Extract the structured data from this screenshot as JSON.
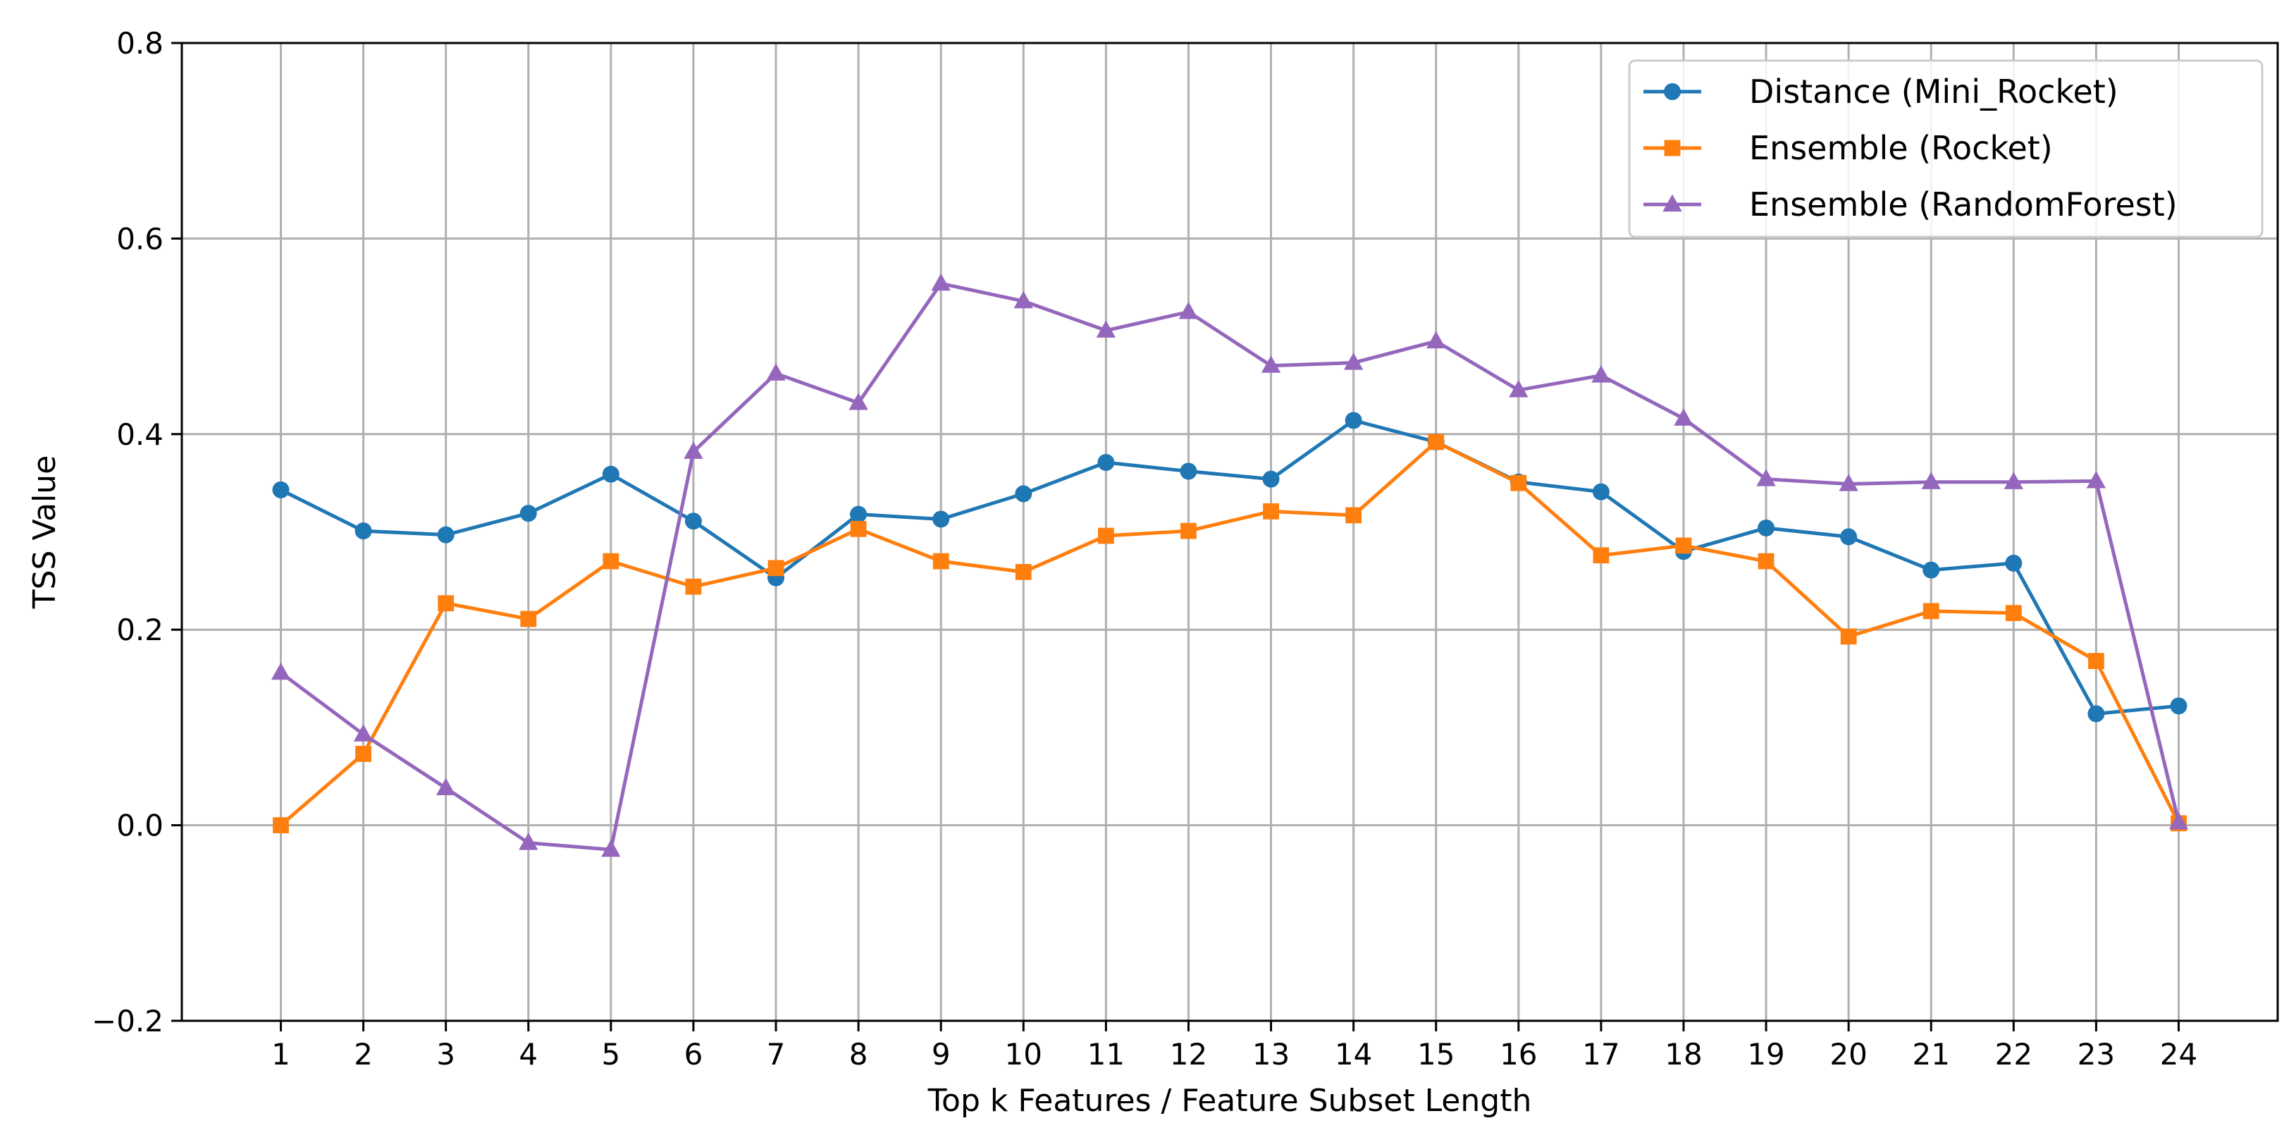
{
  "chart_data": {
    "type": "line",
    "title": "",
    "xlabel": "Top k Features / Feature Subset Length",
    "ylabel": "TSS Value",
    "x": [
      1,
      2,
      3,
      4,
      5,
      6,
      7,
      8,
      9,
      10,
      11,
      12,
      13,
      14,
      15,
      16,
      17,
      18,
      19,
      20,
      21,
      22,
      23,
      24
    ],
    "xlim": [
      -0.2,
      25.2
    ],
    "ylim": [
      -0.2,
      0.8
    ],
    "yticks": [
      -0.2,
      0.0,
      0.2,
      0.4,
      0.6,
      0.8
    ],
    "ytick_labels": [
      "−0.2",
      "0.0",
      "0.2",
      "0.4",
      "0.6",
      "0.8"
    ],
    "grid": true,
    "legend_position": "top-right",
    "series": [
      {
        "name": "Distance (Mini_Rocket)",
        "color": "#1f77b4",
        "marker": "circle",
        "values": [
          0.343,
          0.301,
          0.297,
          0.319,
          0.359,
          0.311,
          0.253,
          0.318,
          0.313,
          0.339,
          0.371,
          0.362,
          0.354,
          0.414,
          0.392,
          0.351,
          0.341,
          0.28,
          0.304,
          0.295,
          0.261,
          0.268,
          0.114,
          0.122
        ]
      },
      {
        "name": "Ensemble (Rocket)",
        "color": "#ff7f0e",
        "marker": "square",
        "values": [
          0.0,
          0.073,
          0.227,
          0.211,
          0.27,
          0.244,
          0.263,
          0.303,
          0.27,
          0.259,
          0.296,
          0.301,
          0.321,
          0.317,
          0.392,
          0.35,
          0.276,
          0.286,
          0.27,
          0.193,
          0.219,
          0.217,
          0.168,
          0.002
        ]
      },
      {
        "name": "Ensemble (RandomForest)",
        "color": "#9467bd",
        "marker": "triangle",
        "values": [
          0.156,
          0.093,
          0.038,
          -0.018,
          -0.025,
          0.382,
          0.462,
          0.432,
          0.554,
          0.536,
          0.506,
          0.525,
          0.47,
          0.473,
          0.495,
          0.445,
          0.46,
          0.416,
          0.354,
          0.349,
          0.351,
          0.351,
          0.352,
          0.003
        ]
      }
    ]
  }
}
